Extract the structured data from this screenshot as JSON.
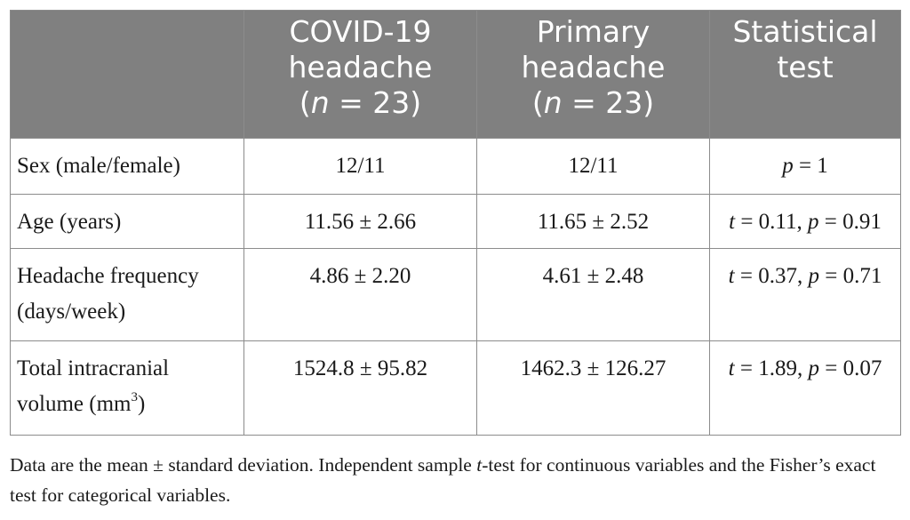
{
  "table": {
    "header": {
      "col0": "",
      "col1_line1": "COVID-19",
      "col1_line2": "headache",
      "col1_n_open": "(",
      "col1_n_var": "n",
      "col1_n_rest": " = 23)",
      "col2_line1": "Primary",
      "col2_line2": "headache",
      "col2_n_open": "(",
      "col2_n_var": "n",
      "col2_n_rest": " = 23)",
      "col3_line1": "Statistical",
      "col3_line2": "test"
    },
    "rows": {
      "sex": {
        "label": "Sex (male/female)",
        "covid": "12/11",
        "primary": "12/11",
        "test_p_var": "p",
        "test_p_val": " = 1"
      },
      "age": {
        "label": "Age (years)",
        "covid": "11.56 ± 2.66",
        "primary": "11.65 ± 2.52",
        "test_t_var": "t",
        "test_t_val": " = 0.11, ",
        "test_p_var": "p",
        "test_p_val": " = 0.91"
      },
      "freq": {
        "label_line1": "Headache frequency",
        "label_line2": "(days/week)",
        "covid": "4.86 ± 2.20",
        "primary": "4.61 ± 2.48",
        "test_t_var": "t",
        "test_t_val": " = 0.37, ",
        "test_p_var": "p",
        "test_p_val": " = 0.71"
      },
      "tiv": {
        "label_line1": "Total intracranial",
        "label_line2_pre": "volume (mm",
        "label_line2_sup": "3",
        "label_line2_post": ")",
        "covid": "1524.8 ± 95.82",
        "primary": "1462.3 ± 126.27",
        "test_t_var": "t",
        "test_t_val": " = 1.89, ",
        "test_p_var": "p",
        "test_p_val": " = 0.07"
      }
    }
  },
  "footnote": {
    "part1": "Data are the mean ± standard deviation. Independent sample ",
    "t_var": "t",
    "part2": "-test for continuous variables and the Fisher’s exact test for categorical variables."
  }
}
